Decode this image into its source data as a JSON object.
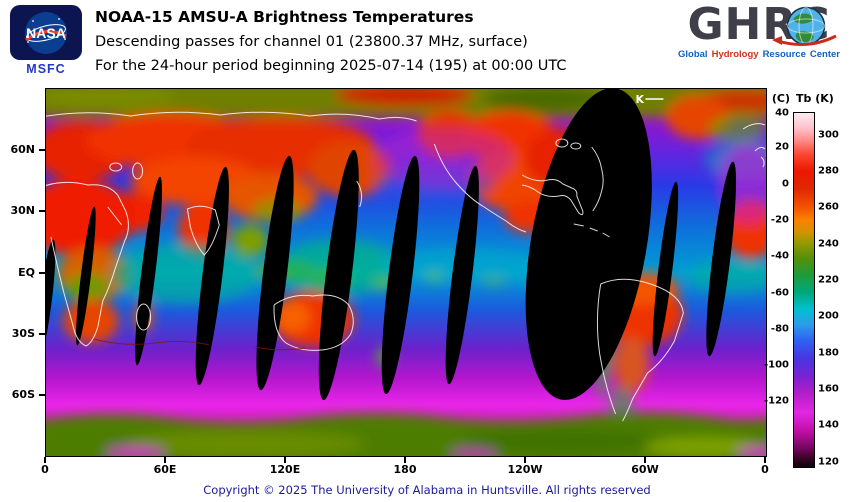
{
  "header": {
    "title": "NOAA-15 AMSU-A Brightness Temperatures",
    "subtitle": "Descending passes for channel 01 (23800.37 MHz, surface)",
    "period_line": "For the 24-hour period beginning 2025-07-14 (195) at 00:00 UTC",
    "nasa": {
      "label": "NASA",
      "sublabel": "MSFC"
    },
    "ghrc": {
      "logo_text": "GHRC",
      "tagline_words": [
        {
          "text": "Global",
          "color": "#1560bd"
        },
        {
          "text": "Hydrology",
          "color": "#cf3417"
        },
        {
          "text": "Resource",
          "color": "#1560bd"
        },
        {
          "text": "Center",
          "color": "#1560bd"
        }
      ]
    }
  },
  "map": {
    "y_ticks": [
      "60N",
      "30N",
      "EQ",
      "30S",
      "60S"
    ],
    "x_ticks": [
      "0",
      "60E",
      "120E",
      "180",
      "120W",
      "60W",
      "0"
    ],
    "marker_label": "K"
  },
  "colorbar": {
    "header_celsius": "(C)",
    "header_kelvin": "Tb (K)",
    "celsius_ticks": [
      "40",
      "20",
      "0",
      "-20",
      "-40",
      "-60",
      "-80",
      "-100",
      "-120"
    ],
    "kelvin_ticks": [
      "300",
      "280",
      "260",
      "240",
      "220",
      "200",
      "180",
      "160",
      "140",
      "120"
    ],
    "gradient_stops": [
      {
        "k": 312,
        "color": "#ffeaf2"
      },
      {
        "k": 304,
        "color": "#ffc2cd"
      },
      {
        "k": 297,
        "color": "#ff8b8b"
      },
      {
        "k": 289,
        "color": "#fb4530"
      },
      {
        "k": 280,
        "color": "#ec1800"
      },
      {
        "k": 270,
        "color": "#e02800"
      },
      {
        "k": 261,
        "color": "#f05000"
      },
      {
        "k": 253,
        "color": "#fb8100"
      },
      {
        "k": 246,
        "color": "#cf9400"
      },
      {
        "k": 240,
        "color": "#939a00"
      },
      {
        "k": 232,
        "color": "#55900a"
      },
      {
        "k": 223,
        "color": "#1f9a38"
      },
      {
        "k": 213,
        "color": "#00a87e"
      },
      {
        "k": 204,
        "color": "#00c0cf"
      },
      {
        "k": 196,
        "color": "#2b9fe8"
      },
      {
        "k": 187,
        "color": "#2f63f2"
      },
      {
        "k": 177,
        "color": "#4836e2"
      },
      {
        "k": 167,
        "color": "#7a22d2"
      },
      {
        "k": 157,
        "color": "#b51fc9"
      },
      {
        "k": 147,
        "color": "#e227e2"
      },
      {
        "k": 137,
        "color": "#c110a8"
      },
      {
        "k": 128,
        "color": "#7a0764"
      },
      {
        "k": 121,
        "color": "#33031f"
      },
      {
        "k": 118,
        "color": "#140210"
      }
    ]
  },
  "footer": {
    "copyright": "Copyright © 2025 The University of Alabama in Huntsville. All rights reserved"
  }
}
